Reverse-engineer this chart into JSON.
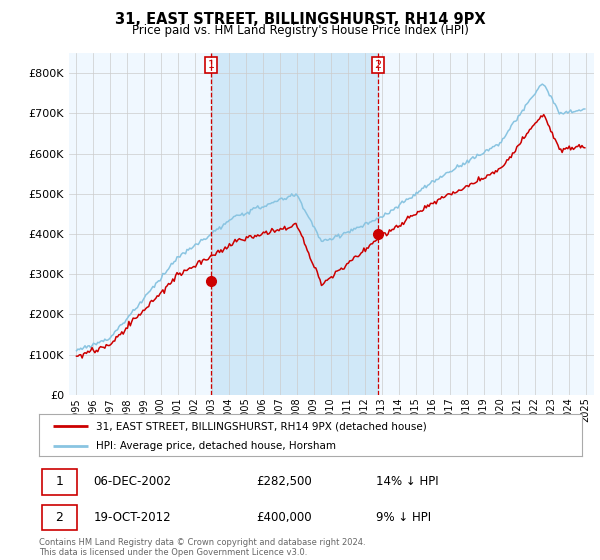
{
  "title": "31, EAST STREET, BILLINGSHURST, RH14 9PX",
  "subtitle": "Price paid vs. HM Land Registry's House Price Index (HPI)",
  "ylim": [
    0,
    850000
  ],
  "yticks": [
    0,
    100000,
    200000,
    300000,
    400000,
    500000,
    600000,
    700000,
    800000
  ],
  "hpi_color": "#89c4e1",
  "price_color": "#cc0000",
  "marker_color_fill": "#cc0000",
  "vline_color": "#cc0000",
  "shade_color": "#d0e8f8",
  "t1": 2002.958,
  "t2": 2012.792,
  "transaction1_price": 282500,
  "transaction2_price": 400000,
  "legend1": "31, EAST STREET, BILLINGSHURST, RH14 9PX (detached house)",
  "legend2": "HPI: Average price, detached house, Horsham",
  "table_row1": [
    "1",
    "06-DEC-2002",
    "£282,500",
    "14% ↓ HPI"
  ],
  "table_row2": [
    "2",
    "19-OCT-2012",
    "£400,000",
    "9% ↓ HPI"
  ],
  "footer": "Contains HM Land Registry data © Crown copyright and database right 2024.\nThis data is licensed under the Open Government Licence v3.0.",
  "bg_color": "#f0f8ff",
  "grid_color": "#cccccc"
}
